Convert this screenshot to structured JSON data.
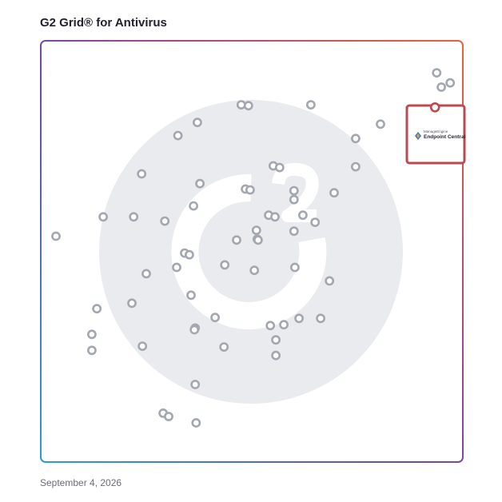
{
  "header": {
    "title": "G2 Grid® for Antivirus"
  },
  "footer": {
    "date": "September 4, 2026"
  },
  "colors": {
    "marker_gray": "#a3a7b0",
    "highlight_red": "#b84a52",
    "watermark": "#e9ebef",
    "border_top_left": "#6a4aa8",
    "border_top_right": "#e8633a",
    "border_bottom_left": "#2f9ad2",
    "border_bottom_right": "#7a3aa0"
  },
  "highlight": {
    "logo_small": "ManageEngine",
    "logo_main": "Endpoint Central",
    "logo_icon": "manageengine-logo-icon"
  },
  "chart_data": {
    "type": "scatter",
    "title": "G2 Grid® for Antivirus",
    "xlabel": "",
    "ylabel": "",
    "xlim": [
      0,
      100
    ],
    "ylim": [
      0,
      100
    ],
    "grid": "quadrants",
    "quadrant_split": {
      "x": 50,
      "y": 50
    },
    "points": [
      [
        93.8,
        92.4
      ],
      [
        94.9,
        89.0
      ],
      [
        97.0,
        90.0
      ],
      [
        93.8,
        84.0
      ],
      [
        47.5,
        84.8
      ],
      [
        49.2,
        84.6
      ],
      [
        64.0,
        84.8
      ],
      [
        80.5,
        80.2
      ],
      [
        37.1,
        80.6
      ],
      [
        32.5,
        77.5
      ],
      [
        74.6,
        76.8
      ],
      [
        74.6,
        70.1
      ],
      [
        55.1,
        70.3
      ],
      [
        56.6,
        69.9
      ],
      [
        23.9,
        68.4
      ],
      [
        37.7,
        66.1
      ],
      [
        48.5,
        64.8
      ],
      [
        49.6,
        64.6
      ],
      [
        60.0,
        64.4
      ],
      [
        60.0,
        62.3
      ],
      [
        69.5,
        63.9
      ],
      [
        36.2,
        60.8
      ],
      [
        14.8,
        58.2
      ],
      [
        22.0,
        58.2
      ],
      [
        54.0,
        58.6
      ],
      [
        55.5,
        58.2
      ],
      [
        62.1,
        58.6
      ],
      [
        29.4,
        57.2
      ],
      [
        65.0,
        56.9
      ],
      [
        51.1,
        55.0
      ],
      [
        60.0,
        54.8
      ],
      [
        51.3,
        52.9
      ],
      [
        46.4,
        52.7
      ],
      [
        51.5,
        52.7
      ],
      [
        3.6,
        53.6
      ],
      [
        34.1,
        49.6
      ],
      [
        35.2,
        49.2
      ],
      [
        43.6,
        46.8
      ],
      [
        32.2,
        46.2
      ],
      [
        25.0,
        44.7
      ],
      [
        50.6,
        45.5
      ],
      [
        60.2,
        46.2
      ],
      [
        68.4,
        43.0
      ],
      [
        35.6,
        39.6
      ],
      [
        21.6,
        37.7
      ],
      [
        13.3,
        36.4
      ],
      [
        41.3,
        34.3
      ],
      [
        61.2,
        34.1
      ],
      [
        66.3,
        34.1
      ],
      [
        57.6,
        32.6
      ],
      [
        54.4,
        32.4
      ],
      [
        36.6,
        31.8
      ],
      [
        36.4,
        31.4
      ],
      [
        12.1,
        30.3
      ],
      [
        24.1,
        27.5
      ],
      [
        55.7,
        29.0
      ],
      [
        43.4,
        27.3
      ],
      [
        12.1,
        26.5
      ],
      [
        55.7,
        25.3
      ],
      [
        36.6,
        18.4
      ],
      [
        29.0,
        11.6
      ],
      [
        30.3,
        10.8
      ],
      [
        36.8,
        9.3
      ]
    ],
    "highlighted_point": {
      "x": 93.4,
      "y": 84.2,
      "label": "Endpoint Central"
    }
  }
}
